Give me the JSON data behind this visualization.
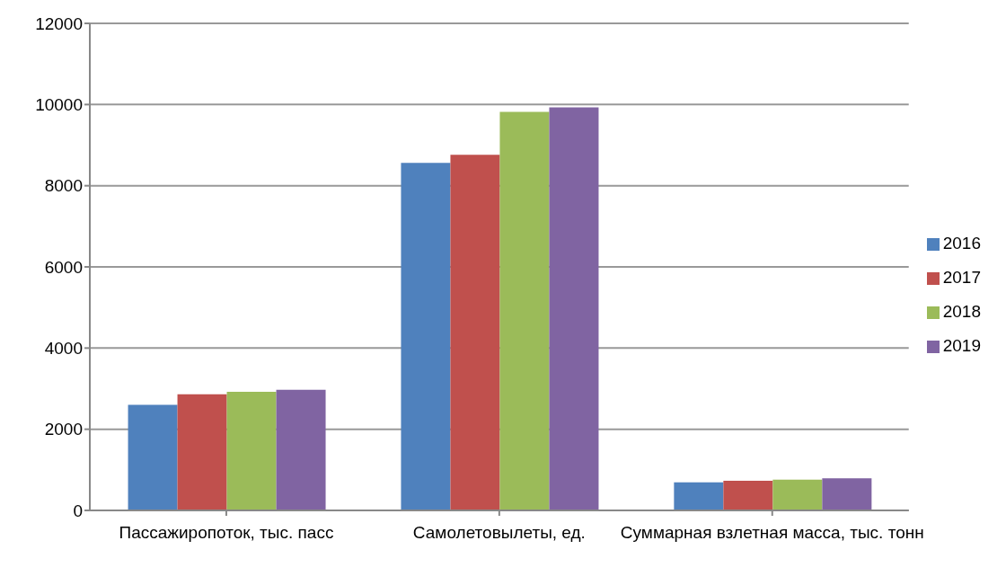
{
  "chart_data": {
    "type": "bar",
    "categories": [
      "Пассажиропоток, тыс. пасс",
      "Самолетовылеты, ед.",
      "Суммарная взлетная масса, тыс. тонн"
    ],
    "series": [
      {
        "name": "2016",
        "color": "#4f81bd",
        "values": [
          2600,
          8560,
          690
        ]
      },
      {
        "name": "2017",
        "color": "#c0504d",
        "values": [
          2860,
          8760,
          730
        ]
      },
      {
        "name": "2018",
        "color": "#9bbb59",
        "values": [
          2920,
          9820,
          760
        ]
      },
      {
        "name": "2019",
        "color": "#8064a2",
        "values": [
          2970,
          9930,
          790
        ]
      }
    ],
    "ylim": [
      0,
      12000
    ],
    "yticks": [
      0,
      2000,
      4000,
      6000,
      8000,
      10000,
      12000
    ],
    "grid": "y",
    "legend": "right"
  }
}
